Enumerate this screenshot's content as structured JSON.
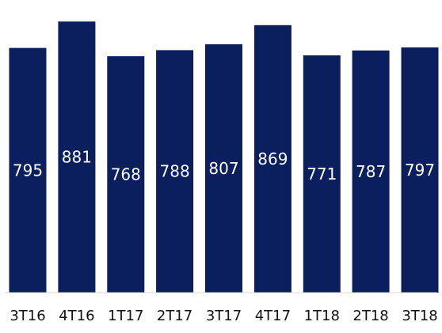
{
  "colors": {
    "bar": "#0b1f5e",
    "baseline": "#d9d9d9",
    "data_label": "#ffffff",
    "tick_label": "#111111"
  },
  "chart_data": {
    "type": "bar",
    "categories": [
      "3T16",
      "4T16",
      "1T17",
      "2T17",
      "3T17",
      "4T17",
      "1T18",
      "2T18",
      "3T18"
    ],
    "values": [
      795,
      881,
      768,
      788,
      807,
      869,
      771,
      787,
      797
    ],
    "title": "",
    "xlabel": "",
    "ylabel": "",
    "ylim": [
      0,
      920
    ],
    "grid": false,
    "legend": "none",
    "data_labels": true
  }
}
